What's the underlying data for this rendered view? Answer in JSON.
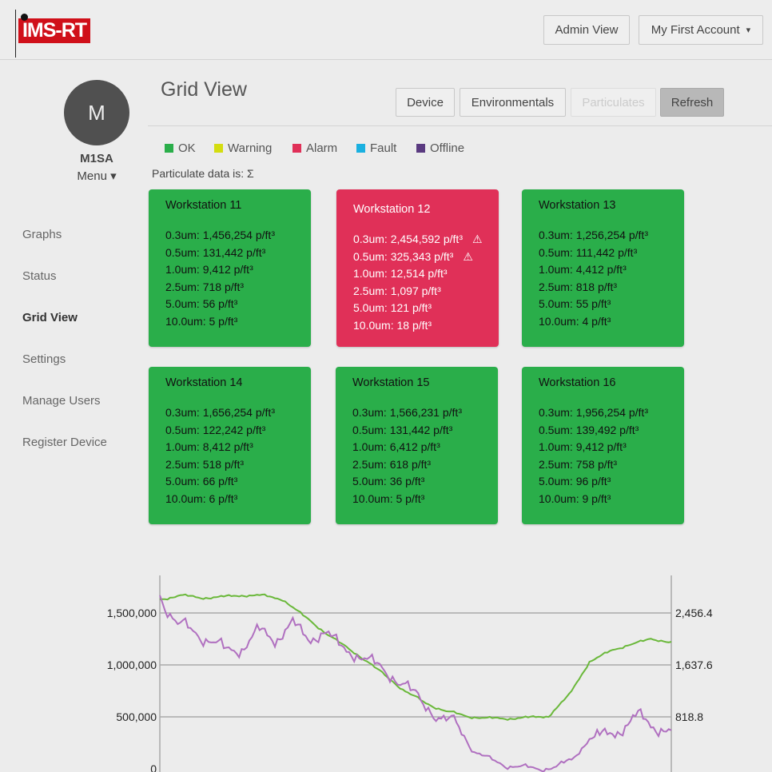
{
  "header": {
    "logo_text": "IMS-RT",
    "admin_view": "Admin View",
    "account": "My First Account",
    "account_caret": "▾"
  },
  "sidebar": {
    "avatar_initial": "M",
    "username": "M1SA",
    "menu_label": "Menu ▾",
    "items": [
      {
        "label": "Graphs"
      },
      {
        "label": "Status"
      },
      {
        "label": "Grid View",
        "active": true
      },
      {
        "label": "Settings"
      },
      {
        "label": "Manage Users"
      },
      {
        "label": "Register Device"
      }
    ]
  },
  "main": {
    "title": "Grid View",
    "tabs": [
      {
        "label": "Device"
      },
      {
        "label": "Environmentals"
      },
      {
        "label": "Particulates",
        "disabled": true
      },
      {
        "label": "Refresh"
      }
    ],
    "legend": [
      {
        "label": "OK",
        "color": "#2aae4a"
      },
      {
        "label": "Warning",
        "color": "#d4dd10"
      },
      {
        "label": "Alarm",
        "color": "#e03058"
      },
      {
        "label": "Fault",
        "color": "#1ab0e0"
      },
      {
        "label": "Offline",
        "color": "#5a3a80"
      }
    ],
    "particulate_label": "Particulate data is: Σ",
    "cards": [
      {
        "name": "Workstation 11",
        "status": "ok",
        "lines": [
          "0.3um: 1,456,254 p/ft³",
          "0.5um: 131,442 p/ft³",
          "1.0um: 9,412 p/ft³",
          "2.5um: 718 p/ft³",
          "5.0um: 56 p/ft³",
          "10.0um: 5 p/ft³"
        ],
        "warnings": []
      },
      {
        "name": "Workstation 12",
        "status": "alarm",
        "lines": [
          "0.3um: 2,454,592 p/ft³",
          "0.5um: 325,343 p/ft³",
          "1.0um: 12,514 p/ft³",
          "2.5um: 1,097 p/ft³",
          "5.0um: 121 p/ft³",
          "10.0um: 18 p/ft³"
        ],
        "warnings": [
          0,
          1
        ]
      },
      {
        "name": "Workstation 13",
        "status": "ok",
        "lines": [
          "0.3um: 1,256,254 p/ft³",
          "0.5um: 111,442 p/ft³",
          "1.0um: 4,412 p/ft³",
          "2.5um: 818 p/ft³",
          "5.0um: 55 p/ft³",
          "10.0um: 4 p/ft³"
        ],
        "warnings": []
      },
      {
        "name": "Workstation 14",
        "status": "ok",
        "lines": [
          "0.3um: 1,656,254 p/ft³",
          "0.5um: 122,242 p/ft³",
          "1.0um: 8,412 p/ft³",
          "2.5um: 518 p/ft³",
          "5.0um: 66 p/ft³",
          "10.0um: 6 p/ft³"
        ],
        "warnings": []
      },
      {
        "name": "Workstation 15",
        "status": "ok",
        "lines": [
          "0.3um: 1,566,231 p/ft³",
          "0.5um: 131,442 p/ft³",
          "1.0um: 6,412 p/ft³",
          "2.5um: 618 p/ft³",
          "5.0um: 36 p/ft³",
          "10.0um: 5 p/ft³"
        ],
        "warnings": []
      },
      {
        "name": "Workstation 16",
        "status": "ok",
        "lines": [
          "0.3um: 1,956,254 p/ft³",
          "0.5um: 139,492 p/ft³",
          "1.0um: 9,412 p/ft³",
          "2.5um: 758 p/ft³",
          "5.0um: 96 p/ft³",
          "10.0um: 9 p/ft³"
        ],
        "warnings": []
      }
    ]
  },
  "chart_data": {
    "type": "line",
    "grid": true,
    "left_ticks": [
      "0",
      "500,000",
      "1,000,000",
      "1,500,000"
    ],
    "left_tick_values": [
      0,
      500000,
      1000000,
      1500000
    ],
    "left_ylim": [
      0,
      1850000
    ],
    "right_ticks": [
      "818.8",
      "1,637.6",
      "2,456.4"
    ],
    "right_tick_values": [
      818.8,
      1637.6,
      2456.4
    ],
    "right_ylim": [
      0,
      3030
    ],
    "series": [
      {
        "axis": "right",
        "color": "#6ab83a",
        "values": [
          2670,
          2734,
          2696,
          2708,
          2734,
          2734,
          2670,
          2419,
          2167,
          1940,
          1726,
          1474,
          1222,
          1033,
          907,
          831,
          794,
          794,
          806,
          831,
          1159,
          1688,
          1852,
          1965,
          2041,
          2003
        ]
      },
      {
        "axis": "left",
        "color": "#b070c0",
        "values": [
          1669000,
          1400000,
          1323000,
          1246000,
          1131000,
          1169000,
          1323000,
          1246000,
          1400000,
          1246000,
          1323000,
          1169000,
          1092000,
          1015000,
          900000,
          785000,
          631000,
          477000,
          438000,
          169000,
          92000,
          31000,
          15000,
          0,
          15000,
          92000,
          285000,
          323000,
          385000,
          515000,
          400000,
          362000
        ]
      }
    ]
  }
}
